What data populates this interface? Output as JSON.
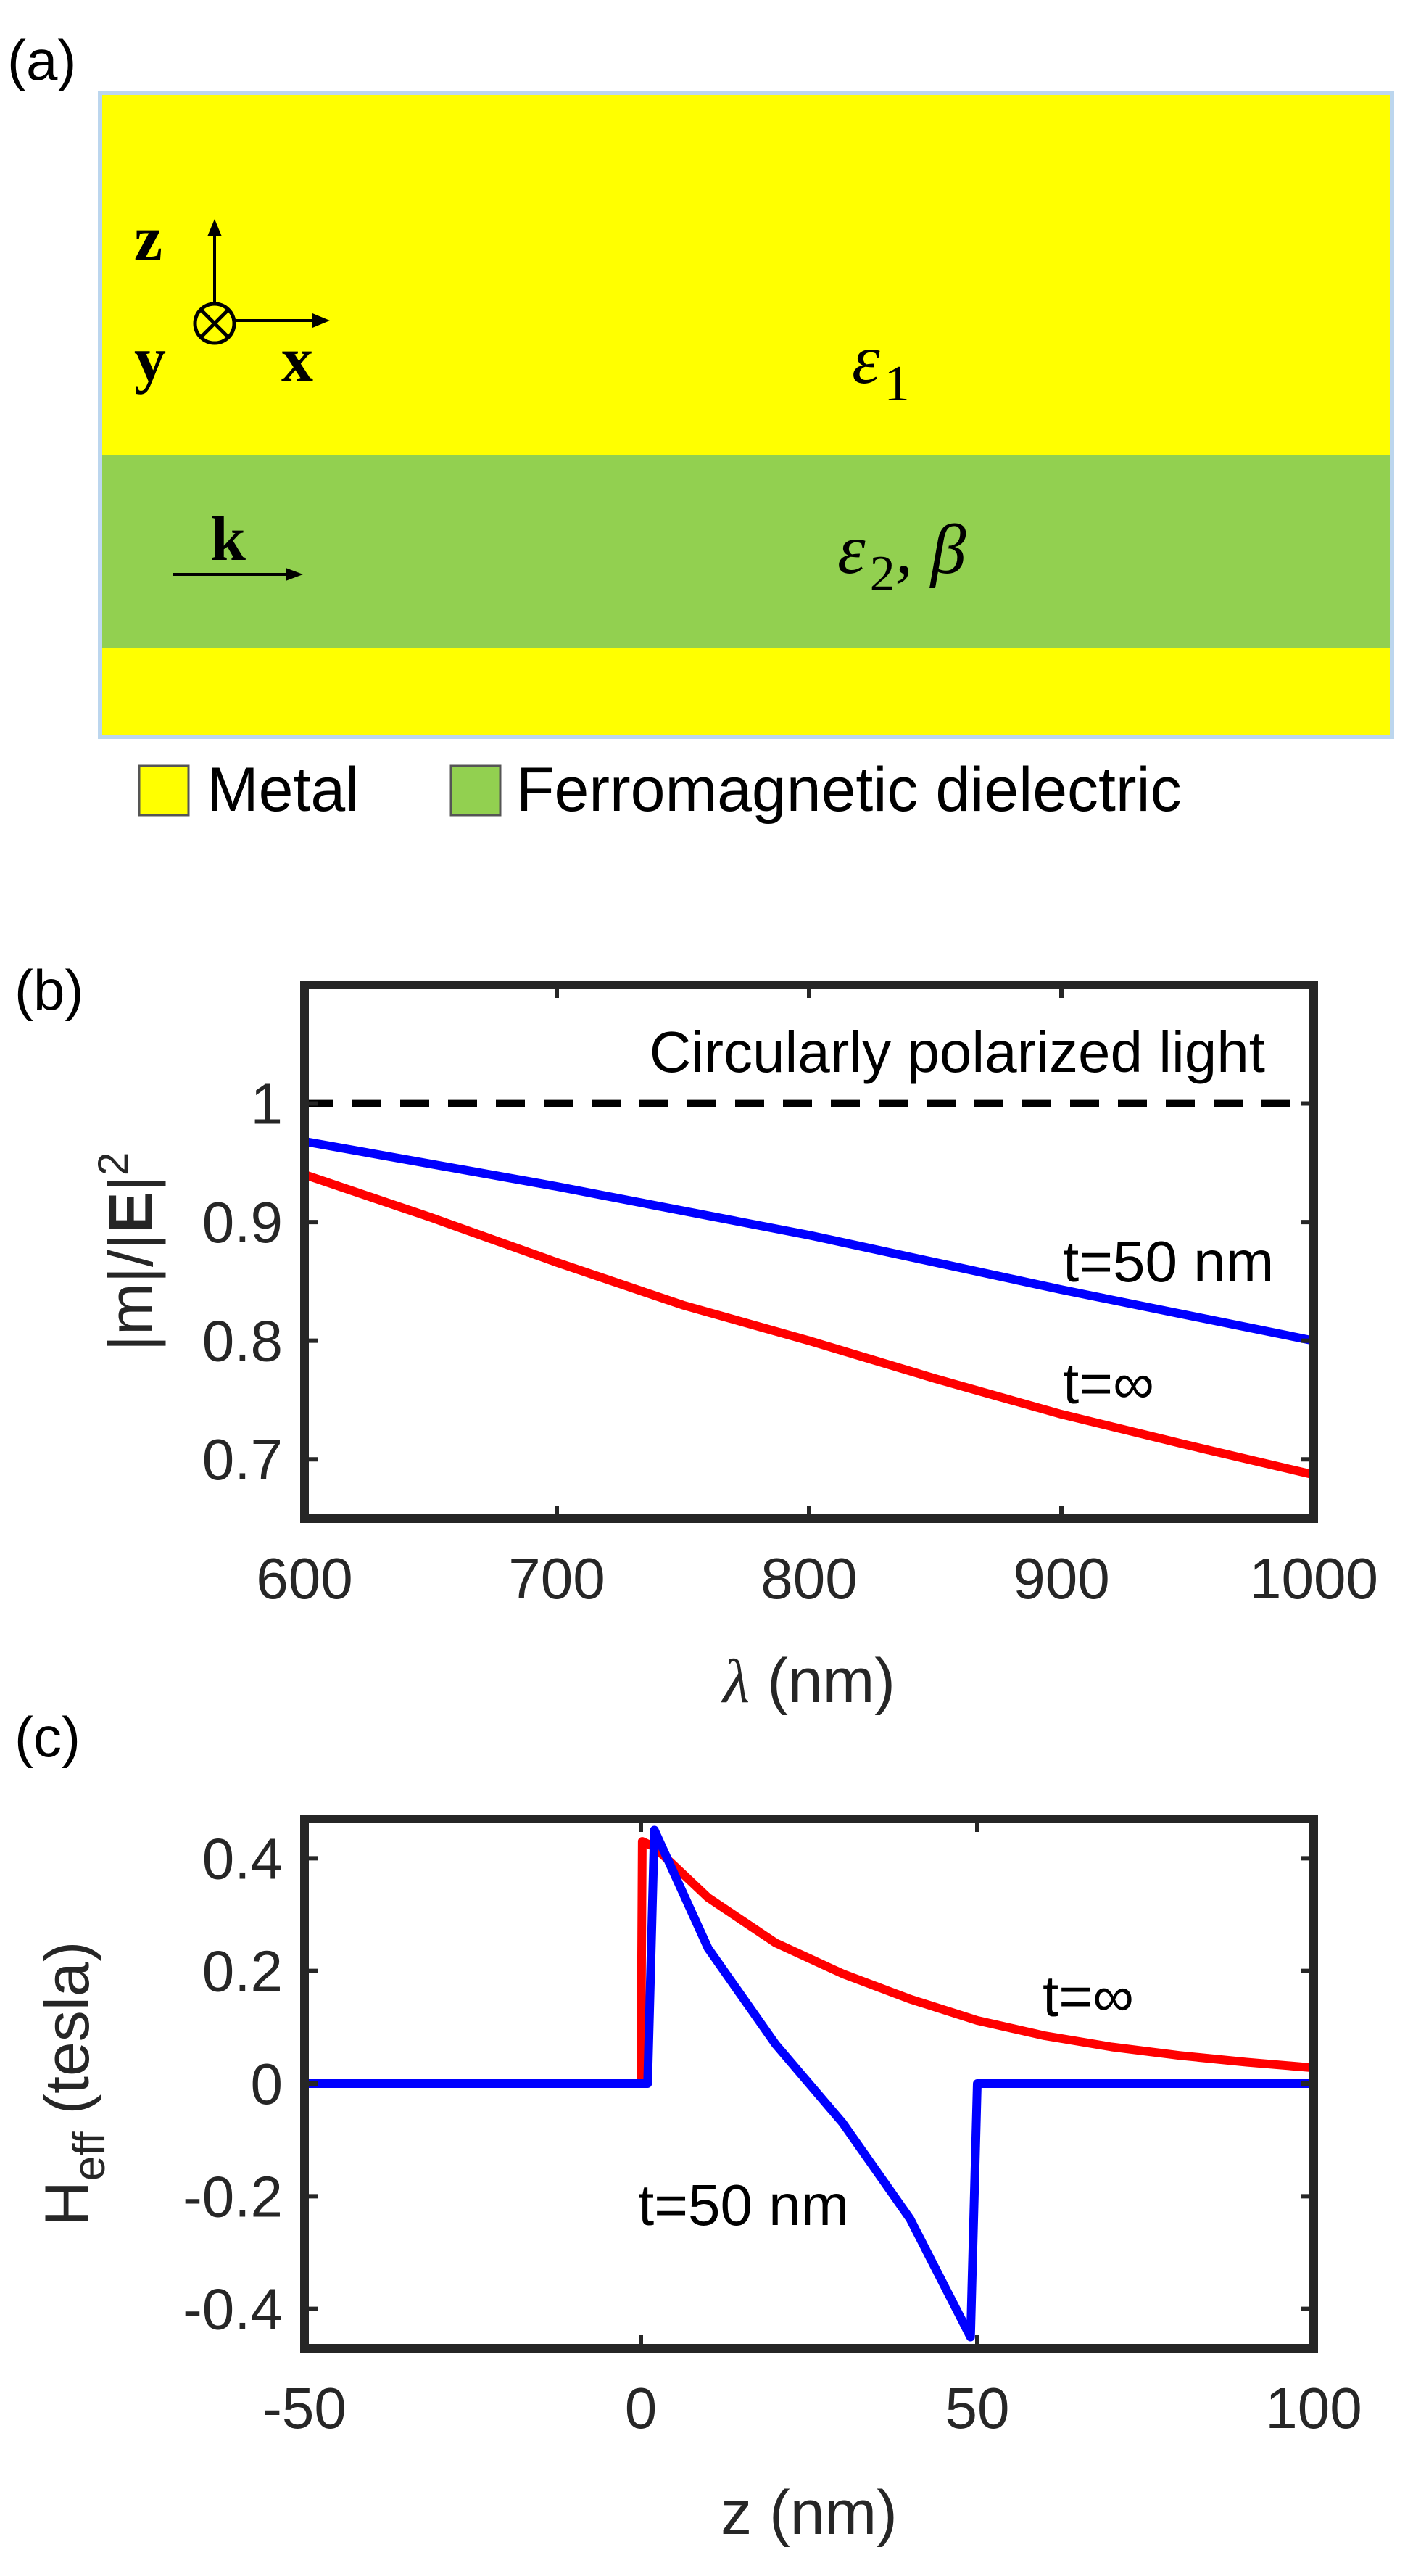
{
  "panel_a": {
    "label": "(a)",
    "axes": {
      "z": "z",
      "y": "y",
      "x": "x"
    },
    "wave_vector": "k",
    "layer1": {
      "symbol": "ε",
      "subscript": "1"
    },
    "layer2": {
      "symbol": "ε",
      "subscript": "2",
      "suffix": ", β"
    },
    "legend": [
      {
        "label": "Metal",
        "color": "#ffff00"
      },
      {
        "label": "Ferromagnetic dielectric",
        "color": "#92d050"
      }
    ],
    "colors": {
      "metal": "#ffff00",
      "dielectric": "#92d050",
      "border": "#bcd6ee"
    }
  },
  "chart_data": [
    {
      "panel": "(b)",
      "type": "line",
      "xlabel_symbol": "λ",
      "xlabel_unit": " (nm)",
      "ylabel_parts": [
        "|m|/|",
        "E",
        "|",
        "2"
      ],
      "xlim": [
        600,
        1000
      ],
      "ylim": [
        0.65,
        1.1
      ],
      "xticks": [
        600,
        700,
        800,
        900,
        1000
      ],
      "yticks": [
        0.7,
        0.8,
        0.9,
        1
      ],
      "ytick_labels": [
        "0.7",
        "0.8",
        "0.9",
        "1"
      ],
      "series": [
        {
          "name": "Circularly polarized light",
          "color": "#000000",
          "dashed": true,
          "x": [
            600,
            1000
          ],
          "y": [
            1.0,
            1.0
          ]
        },
        {
          "name": "t=50 nm",
          "color": "#0000ff",
          "x": [
            600,
            700,
            800,
            900,
            1000
          ],
          "y": [
            0.968,
            0.93,
            0.889,
            0.843,
            0.8
          ]
        },
        {
          "name": "t=∞",
          "color": "#ff0000",
          "x": [
            600,
            650,
            700,
            750,
            800,
            850,
            900,
            950,
            1000
          ],
          "y": [
            0.94,
            0.904,
            0.866,
            0.83,
            0.8,
            0.768,
            0.738,
            0.712,
            0.687
          ]
        }
      ],
      "annotations": [
        "Circularly polarized light",
        "t=50 nm",
        "t=∞"
      ]
    },
    {
      "panel": "(c)",
      "type": "line",
      "xlabel": "z (nm)",
      "ylabel_main": "H",
      "ylabel_sub": "eff",
      "ylabel_unit": " (tesla)",
      "xlim": [
        -50,
        100
      ],
      "ylim": [
        -0.47,
        0.47
      ],
      "xticks": [
        -50,
        0,
        50,
        100
      ],
      "yticks": [
        0.4,
        0.2,
        0,
        -0.2,
        -0.4
      ],
      "ytick_labels": [
        "0.4",
        "0.2",
        "0",
        "-0.2",
        "-0.4"
      ],
      "series": [
        {
          "name": "t=∞",
          "color": "#ff0000",
          "x": [
            -50,
            0,
            0.2,
            2,
            10,
            20,
            30,
            40,
            50,
            60,
            70,
            80,
            90,
            100
          ],
          "y": [
            0,
            0,
            0.43,
            0.42,
            0.33,
            0.25,
            0.195,
            0.15,
            0.112,
            0.085,
            0.065,
            0.05,
            0.038,
            0.028
          ]
        },
        {
          "name": "t=50 nm",
          "color": "#0000ff",
          "x": [
            -50,
            1,
            2,
            10,
            20,
            30,
            40,
            49,
            50,
            100
          ],
          "y": [
            0,
            0,
            0.45,
            0.24,
            0.07,
            -0.07,
            -0.24,
            -0.45,
            0,
            0
          ]
        }
      ],
      "annotations": [
        "t=∞",
        "t=50 nm"
      ]
    }
  ]
}
